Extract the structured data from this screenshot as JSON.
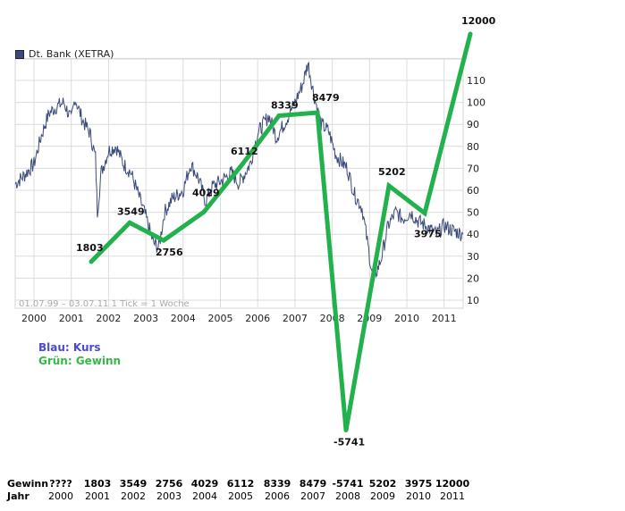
{
  "chart_data": [
    {
      "type": "line",
      "title": "",
      "legend": {
        "label": "Dt. Bank (XETRA)",
        "placement": "top-left",
        "color": "#3b4a7a"
      },
      "date_range_label": "01.07.99 – 03.07.11",
      "tick_info_label": "1 Tick = 1 Woche",
      "x_tick_labels": [
        "2000",
        "2001",
        "2002",
        "2003",
        "2004",
        "2005",
        "2006",
        "2007",
        "2008",
        "2009",
        "2010",
        "2011"
      ],
      "y_tick_labels": [
        "10",
        "20",
        "30",
        "40",
        "50",
        "60",
        "70",
        "80",
        "90",
        "100",
        "110"
      ],
      "xlim": [
        1999.5,
        2011.5
      ],
      "ylim": [
        6,
        122
      ],
      "grid": true,
      "y_axis_side": "right",
      "series": [
        {
          "name": "Blau: Kurs",
          "color": "#3b4a7a",
          "x": [
            1999.5,
            1999.75,
            2000.0,
            2000.2,
            2000.4,
            2000.6,
            2000.8,
            2001.0,
            2001.1,
            2001.3,
            2001.5,
            2001.65,
            2001.7,
            2001.8,
            2002.0,
            2002.2,
            2002.4,
            2002.6,
            2002.8,
            2003.0,
            2003.2,
            2003.35,
            2003.5,
            2003.7,
            2004.0,
            2004.2,
            2004.4,
            2004.6,
            2004.8,
            2005.0,
            2005.3,
            2005.5,
            2005.8,
            2006.0,
            2006.3,
            2006.5,
            2006.8,
            2007.0,
            2007.2,
            2007.35,
            2007.5,
            2007.7,
            2007.9,
            2008.1,
            2008.4,
            2008.6,
            2008.8,
            2009.0,
            2009.1,
            2009.3,
            2009.5,
            2009.7,
            2009.9,
            2010.1,
            2010.3,
            2010.5,
            2010.8,
            2011.0,
            2011.2,
            2011.5
          ],
          "values": [
            63,
            67,
            72,
            85,
            95,
            98,
            100,
            92,
            102,
            92,
            86,
            75,
            50,
            68,
            78,
            80,
            72,
            68,
            58,
            48,
            36,
            34,
            50,
            56,
            60,
            72,
            66,
            55,
            62,
            64,
            68,
            63,
            72,
            86,
            94,
            84,
            93,
            100,
            108,
            118,
            104,
            90,
            87,
            76,
            70,
            58,
            52,
            30,
            19,
            28,
            44,
            50,
            47,
            50,
            46,
            44,
            40,
            44,
            42,
            40
          ]
        }
      ]
    },
    {
      "type": "line",
      "title": "",
      "series": [
        {
          "name": "Grün: Gewinn",
          "color": "#22b14c",
          "x": [
            2001,
            2002,
            2003,
            2004,
            2005,
            2006,
            2007,
            2008,
            2009,
            2010,
            2011
          ],
          "values": [
            1803,
            3549,
            2756,
            4029,
            6112,
            8339,
            8479,
            -5741,
            5202,
            3975,
            12000
          ]
        }
      ]
    }
  ],
  "notes": {
    "blue": "Blau: Kurs",
    "green": "Grün: Gewinn",
    "blue_color": "#4a4ad6",
    "green_color": "#33bb44"
  },
  "table": {
    "gewinn_label": "Gewinn",
    "jahr_label": "Jahr",
    "gewinn": [
      "????",
      "1803",
      "3549",
      "2756",
      "4029",
      "6112",
      "8339",
      "8479",
      "-5741",
      "5202",
      "3975",
      "12000"
    ],
    "jahr": [
      "2000",
      "2001",
      "2002",
      "2003",
      "2004",
      "2005",
      "2006",
      "2007",
      "2008",
      "2009",
      "2010",
      "2011"
    ]
  }
}
